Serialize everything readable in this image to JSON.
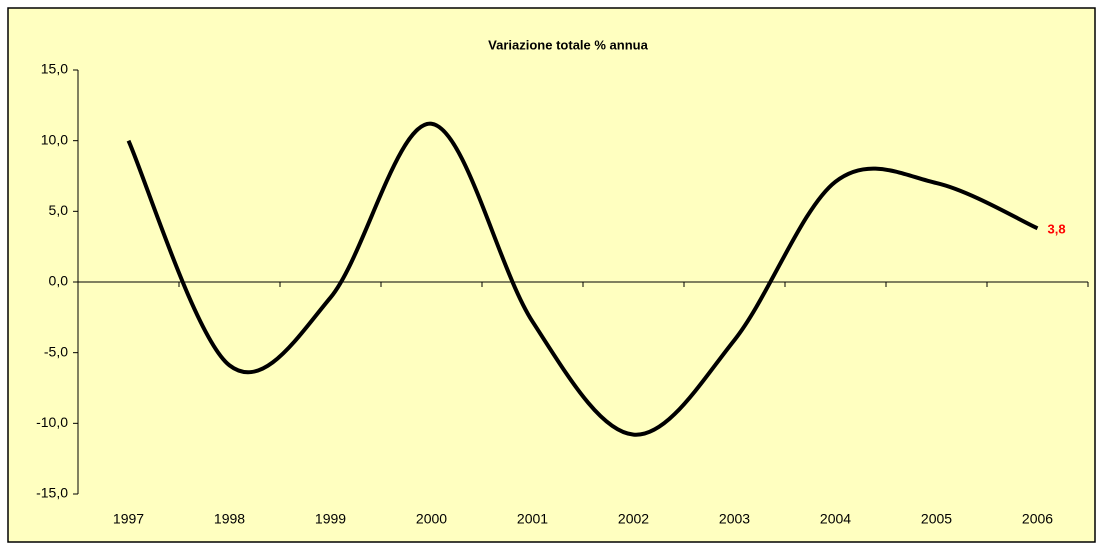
{
  "chart_data": {
    "type": "line",
    "title": "Variazione totale % annua",
    "categories": [
      "1997",
      "1998",
      "1999",
      "2000",
      "2001",
      "2002",
      "2003",
      "2004",
      "2005",
      "2006"
    ],
    "series": [
      {
        "name": "Variazione totale % annua",
        "color": "#000000",
        "values": [
          10.0,
          -5.9,
          -1.1,
          11.2,
          -2.8,
          -10.8,
          -4.1,
          7.1,
          7.0,
          3.8
        ],
        "value_labels": [
          null,
          null,
          null,
          null,
          null,
          null,
          null,
          null,
          null,
          "3,8"
        ],
        "label_color": "#ff0000"
      }
    ],
    "ylim": [
      -15,
      15
    ],
    "yticks": [
      {
        "value": -15,
        "label": "-15,0"
      },
      {
        "value": -10,
        "label": "-10,0"
      },
      {
        "value": -5,
        "label": "-5,0"
      },
      {
        "value": 0,
        "label": "0,0"
      },
      {
        "value": 5,
        "label": "5,0"
      },
      {
        "value": 10,
        "label": "10,0"
      },
      {
        "value": 15,
        "label": "15,0"
      }
    ],
    "smooth": true,
    "background": "#ffffc0"
  }
}
